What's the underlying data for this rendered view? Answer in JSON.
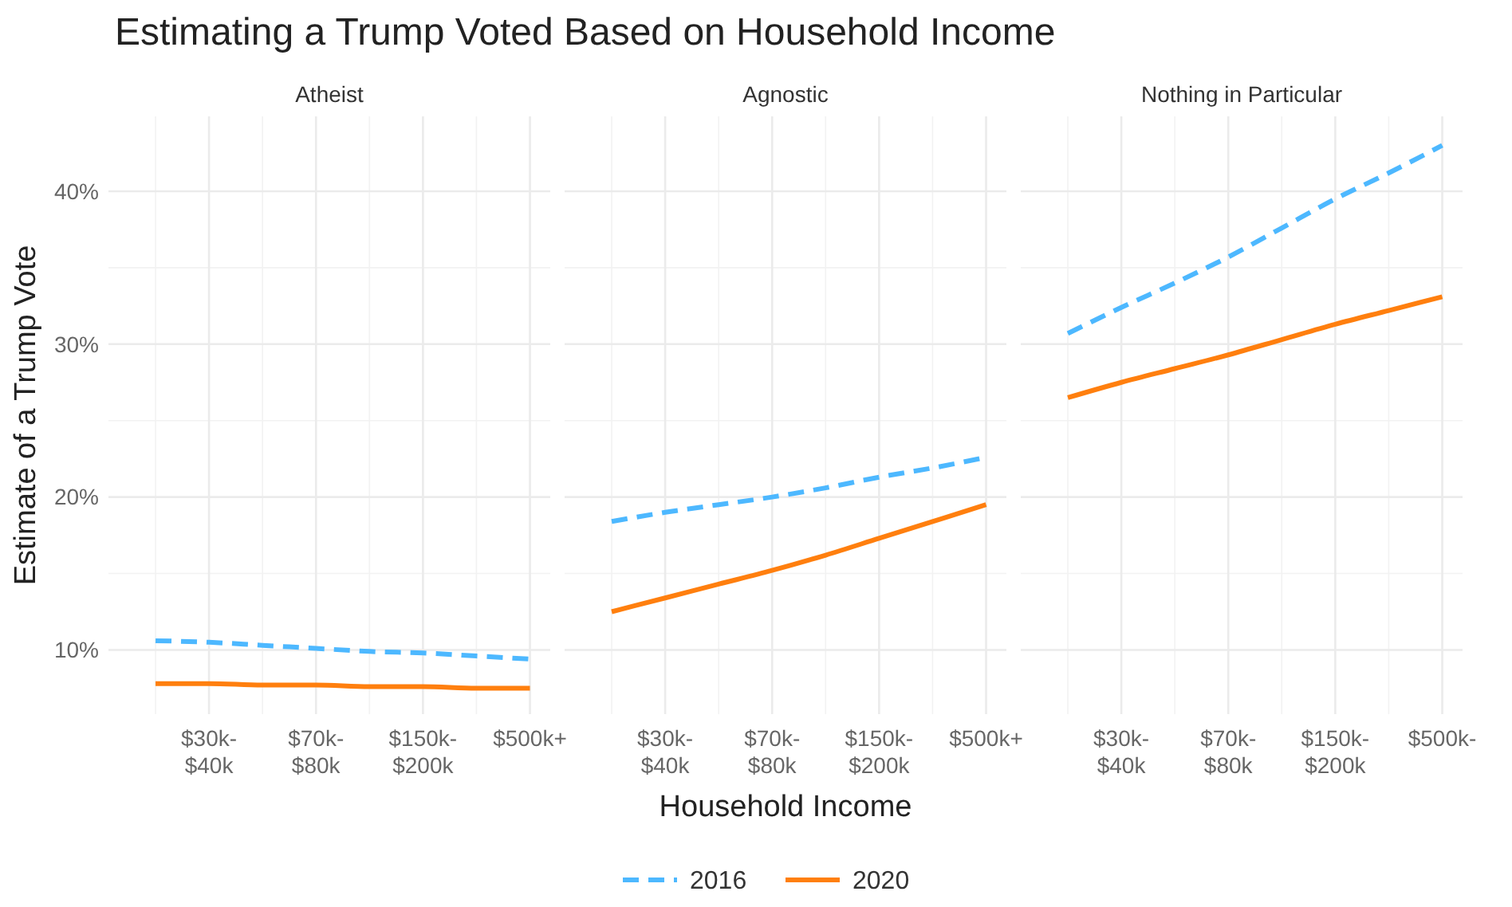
{
  "chart_data": [
    {
      "type": "line",
      "title": "Estimating a Trump Voted Based on Household Income",
      "subtitle": "Atheist",
      "ylabel": "Estimate of a Trump Vote",
      "categories": [
        null,
        "$30k-\n$40k",
        null,
        "$70k-\n$80k",
        null,
        "$150k-\n$200k",
        null,
        "$500k+"
      ],
      "ylim": [
        5.8,
        44.9
      ],
      "yticks": [
        {
          "value": 10,
          "label": "10%"
        },
        {
          "value": 20,
          "label": "20%"
        },
        {
          "value": 30,
          "label": "30%"
        },
        {
          "value": 40,
          "label": "40%"
        }
      ],
      "grid": true,
      "series": [
        {
          "color": "#4db8ff",
          "line_style": "dashed",
          "values": [
            10.6,
            10.5,
            10.3,
            10.1,
            9.9,
            9.8,
            9.6,
            9.4
          ]
        },
        {
          "color": "#ff7f0e",
          "line_style": "solid",
          "values": [
            7.8,
            7.8,
            7.7,
            7.7,
            7.6,
            7.6,
            7.5,
            7.5
          ]
        }
      ]
    },
    {
      "type": "line",
      "subtitle": "Agnostic",
      "xlabel": "Household Income",
      "legend": "bottom",
      "tick_labels": "x",
      "categories": [
        null,
        "$30k-\n$40k",
        null,
        "$70k-\n$80k",
        null,
        "$150k-\n$200k",
        null,
        "$500k+"
      ],
      "ylim": [
        5.8,
        44.9
      ],
      "yticks": [
        {
          "value": 10,
          "label": null
        },
        {
          "value": 20,
          "label": null
        },
        {
          "value": 30,
          "label": null
        },
        {
          "value": 40,
          "label": null
        }
      ],
      "grid": true,
      "series": [
        {
          "name": "2016",
          "color": "#4db8ff",
          "line_style": "dashed",
          "values": [
            18.4,
            19.0,
            19.5,
            20.0,
            20.6,
            21.3,
            21.9,
            22.6
          ]
        },
        {
          "name": "2020",
          "color": "#ff7f0e",
          "line_style": "solid",
          "values": [
            12.5,
            13.4,
            14.3,
            15.2,
            16.2,
            17.3,
            18.4,
            19.5
          ]
        }
      ]
    },
    {
      "type": "line",
      "subtitle": "Nothing in Particular",
      "tick_labels": "x",
      "categories": [
        null,
        "$30k-\n$40k",
        null,
        "$70k-\n$80k",
        null,
        "$150k-\n$200k",
        null,
        "$500k-"
      ],
      "ylim": [
        5.8,
        44.9
      ],
      "yticks": [
        {
          "value": 10,
          "label": null
        },
        {
          "value": 20,
          "label": null
        },
        {
          "value": 30,
          "label": null
        },
        {
          "value": 40,
          "label": null
        }
      ],
      "grid": true,
      "series": [
        {
          "color": "#4db8ff",
          "line_style": "dashed",
          "values": [
            30.7,
            32.4,
            34.0,
            35.7,
            37.6,
            39.5,
            41.2,
            43.0
          ]
        },
        {
          "color": "#ff7f0e",
          "line_style": "solid",
          "values": [
            26.5,
            27.5,
            28.4,
            29.3,
            30.3,
            31.3,
            32.2,
            33.1
          ]
        }
      ]
    }
  ]
}
